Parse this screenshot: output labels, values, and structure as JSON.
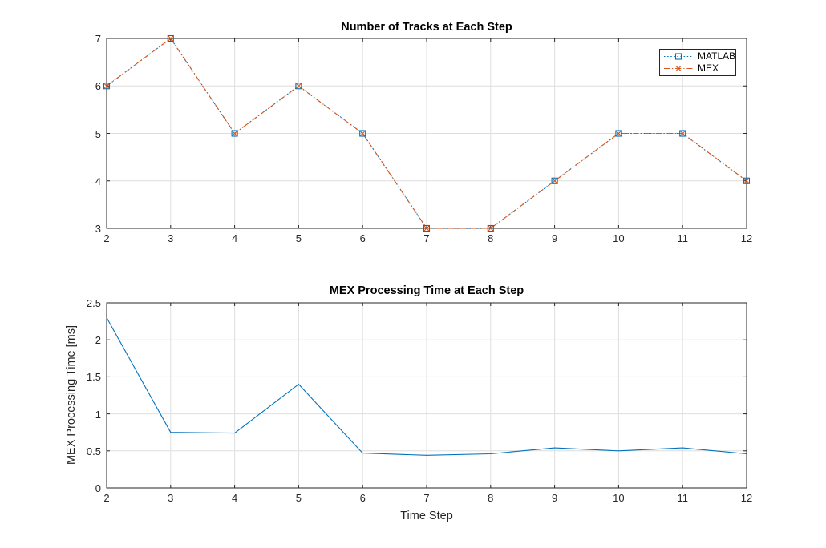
{
  "figure": {
    "background": "#ffffff",
    "axis_color": "#262626",
    "grid_color": "#dedede",
    "tick_text_color": "#262626",
    "title_color": "#000000"
  },
  "chart_data": [
    {
      "type": "line",
      "title": "Number of Tracks at Each Step",
      "xlabel": "",
      "ylabel": "",
      "x": [
        2,
        3,
        4,
        5,
        6,
        7,
        8,
        9,
        10,
        11,
        12
      ],
      "xlim": [
        2,
        12
      ],
      "ylim": [
        3,
        7
      ],
      "xtick_labels": [
        "2",
        "3",
        "4",
        "5",
        "6",
        "7",
        "8",
        "9",
        "10",
        "11",
        "12"
      ],
      "ytick_labels": [
        "3",
        "4",
        "5",
        "6",
        "7"
      ],
      "grid": true,
      "legend_position": "top-right",
      "series": [
        {
          "name": "MATLAB",
          "values": [
            6,
            7,
            5,
            6,
            5,
            3,
            3,
            4,
            5,
            5,
            4
          ],
          "color": "#0072BD",
          "line_style": "dotted",
          "marker": "square"
        },
        {
          "name": "MEX",
          "values": [
            6,
            7,
            5,
            6,
            5,
            3,
            3,
            4,
            5,
            5,
            4
          ],
          "color": "#D95319",
          "line_style": "dash-dot",
          "marker": "x"
        }
      ]
    },
    {
      "type": "line",
      "title": "MEX Processing Time at Each Step",
      "xlabel": "Time Step",
      "ylabel": "MEX Processing Time [ms]",
      "x": [
        2,
        3,
        4,
        5,
        6,
        7,
        8,
        9,
        10,
        11,
        12
      ],
      "xlim": [
        2,
        12
      ],
      "ylim": [
        0,
        2.5
      ],
      "xtick_labels": [
        "2",
        "3",
        "4",
        "5",
        "6",
        "7",
        "8",
        "9",
        "10",
        "11",
        "12"
      ],
      "ytick_labels": [
        "0",
        "0.5",
        "1",
        "1.5",
        "2",
        "2.5"
      ],
      "grid": true,
      "legend_position": "none",
      "series": [
        {
          "values": [
            2.3,
            0.75,
            0.74,
            1.4,
            0.47,
            0.44,
            0.46,
            0.54,
            0.5,
            0.54,
            0.46
          ],
          "color": "#0072BD",
          "line_style": "solid",
          "marker": "none"
        }
      ]
    }
  ]
}
